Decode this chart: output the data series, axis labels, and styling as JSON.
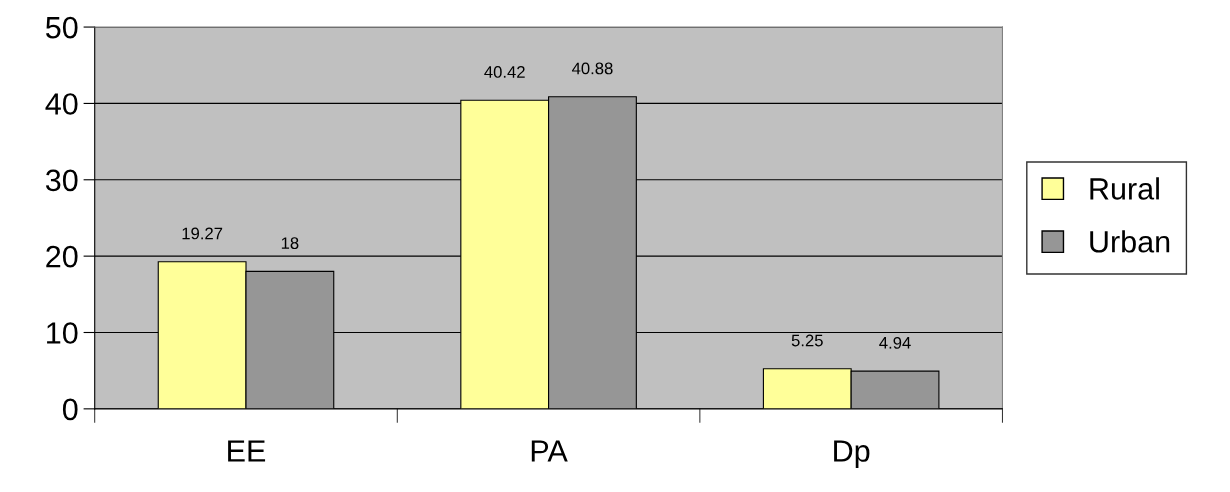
{
  "chart_data": {
    "type": "bar",
    "categories": [
      "EE",
      "PA",
      "Dp"
    ],
    "series": [
      {
        "name": "Rural",
        "color": "#ffff99",
        "values": [
          19.27,
          40.42,
          5.25
        ]
      },
      {
        "name": "Urban",
        "color": "#969696",
        "values": [
          18,
          40.88,
          4.94
        ]
      }
    ],
    "ylim": [
      0,
      50
    ],
    "yticks": [
      0,
      10,
      20,
      30,
      40,
      50
    ],
    "grid": "y",
    "legend": "right",
    "data_labels": true
  }
}
